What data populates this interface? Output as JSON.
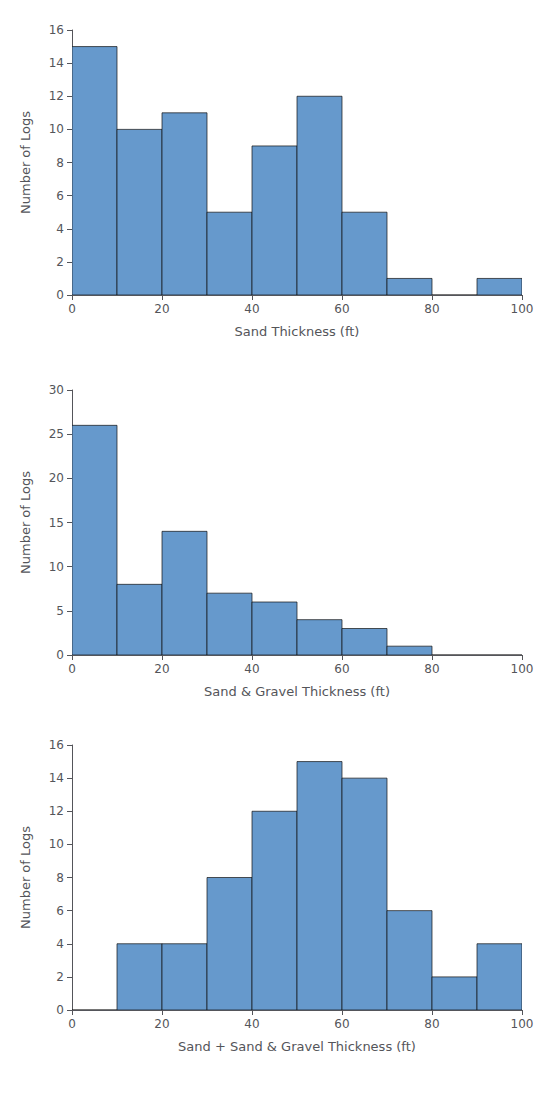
{
  "chart_data": [
    {
      "type": "histogram",
      "xlabel": "Sand Thickness (ft)",
      "ylabel": "Number of Logs",
      "bins": [
        0,
        10,
        20,
        30,
        40,
        50,
        60,
        70,
        80,
        90,
        100
      ],
      "values": [
        15,
        10,
        11,
        5,
        9,
        12,
        5,
        1,
        0,
        1
      ],
      "color": "#6699CC",
      "xlim": [
        0,
        100
      ],
      "xticks": [
        0,
        20,
        40,
        60,
        80,
        100
      ],
      "ylim": [
        0,
        16
      ],
      "yticks": [
        0,
        2,
        4,
        6,
        8,
        10,
        12,
        14,
        16
      ],
      "grid": false
    },
    {
      "type": "histogram",
      "xlabel": "Sand & Gravel Thickness (ft)",
      "ylabel": "Number of Logs",
      "bins": [
        0,
        10,
        20,
        30,
        40,
        50,
        60,
        70,
        80,
        90,
        100
      ],
      "values": [
        26,
        8,
        14,
        7,
        6,
        4,
        3,
        1,
        0,
        0
      ],
      "color": "#6699CC",
      "xlim": [
        0,
        100
      ],
      "xticks": [
        0,
        20,
        40,
        60,
        80,
        100
      ],
      "ylim": [
        0,
        30
      ],
      "yticks": [
        0,
        5,
        10,
        15,
        20,
        25,
        30
      ],
      "grid": false
    },
    {
      "type": "histogram",
      "xlabel": "Sand + Sand & Gravel Thickness (ft)",
      "ylabel": "Number of Logs",
      "bins": [
        0,
        10,
        20,
        30,
        40,
        50,
        60,
        70,
        80,
        90,
        100
      ],
      "values": [
        0,
        4,
        4,
        8,
        12,
        15,
        14,
        6,
        2,
        4
      ],
      "color": "#6699CC",
      "xlim": [
        0,
        100
      ],
      "xticks": [
        0,
        20,
        40,
        60,
        80,
        100
      ],
      "ylim": [
        0,
        16
      ],
      "yticks": [
        0,
        2,
        4,
        6,
        8,
        10,
        12,
        14,
        16
      ],
      "grid": false
    }
  ]
}
